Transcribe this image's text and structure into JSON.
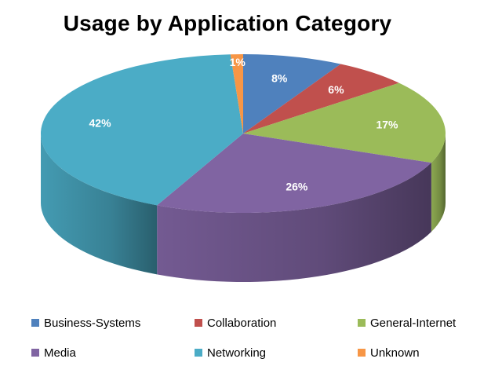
{
  "chart_data": {
    "type": "pie",
    "title": "Usage by Application Category",
    "slices": [
      {
        "name": "Business-Systems",
        "value": 8,
        "label": "8%",
        "color": "#4F81BD"
      },
      {
        "name": "Collaboration",
        "value": 6,
        "label": "6%",
        "color": "#C0504D"
      },
      {
        "name": "General-Internet",
        "value": 17,
        "label": "17%",
        "color": "#9BBB59"
      },
      {
        "name": "Media",
        "value": 26,
        "label": "26%",
        "color": "#8064A2"
      },
      {
        "name": "Networking",
        "value": 42,
        "label": "42%",
        "color": "#4BACC6"
      },
      {
        "name": "Unknown",
        "value": 1,
        "label": "1%",
        "color": "#F79646"
      }
    ],
    "legend_placement": "bottom",
    "style": "3d"
  }
}
